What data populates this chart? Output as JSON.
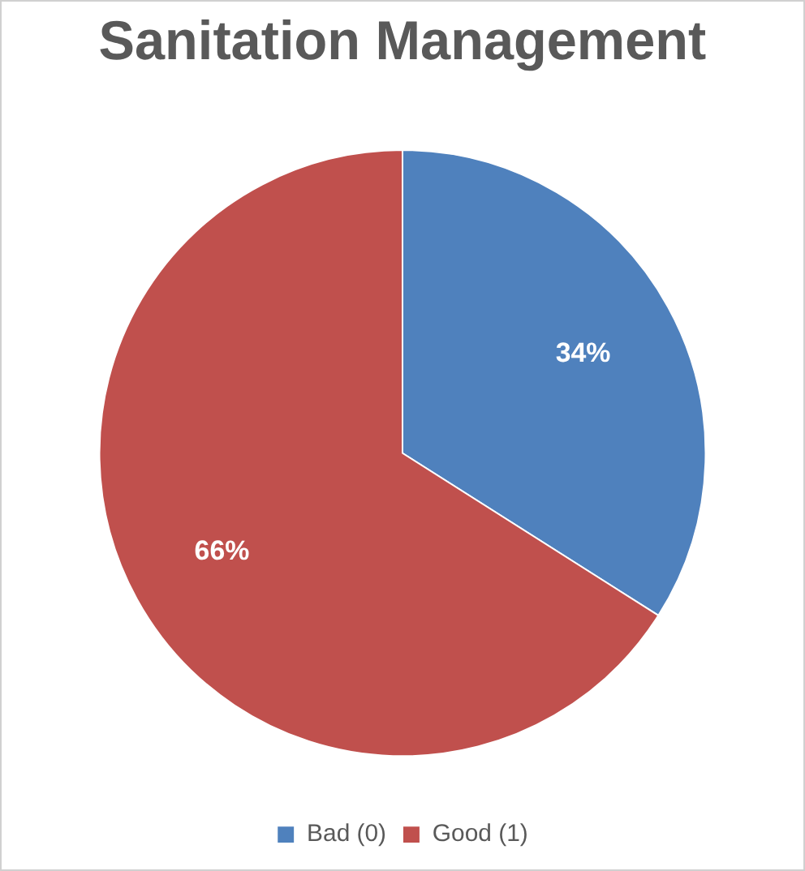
{
  "chart_data": {
    "type": "pie",
    "title": "Sanitation Management",
    "categories": [
      "Bad (0)",
      "Good (1)"
    ],
    "values": [
      34,
      66
    ],
    "colors": [
      "#4f81bd",
      "#c0504d"
    ],
    "value_labels": [
      "34%",
      "66%"
    ],
    "legend": "bottom"
  }
}
